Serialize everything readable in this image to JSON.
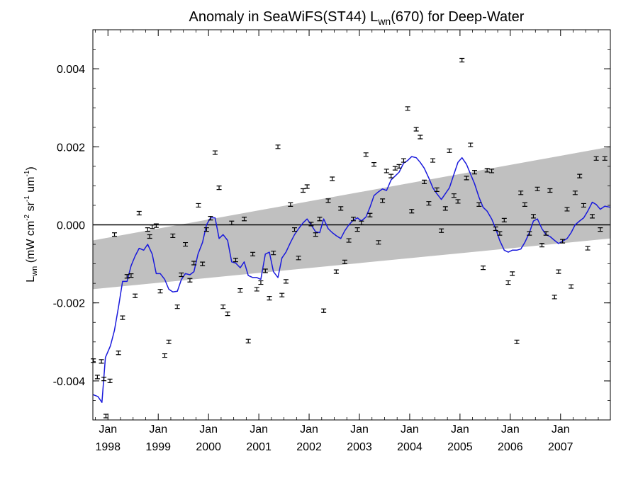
{
  "chart_data": {
    "type": "scatter",
    "title": {
      "prefix": "Anomaly in SeaWiFS(ST44) L",
      "subscript": "wn",
      "suffix": "(670) for Deep-Water"
    },
    "ylabel": {
      "prefix": "L",
      "sub": "wn",
      "mid1": " (mW cm",
      "sup1": "-2",
      "mid2": " sr",
      "sup2": "-1",
      "mid3": " um",
      "sup3": "-1",
      "end": ")"
    },
    "xlim": [
      1997.7,
      2007.99
    ],
    "ylim": [
      -0.005,
      0.005
    ],
    "yticks": [
      {
        "value": 0.004,
        "label": "0.004"
      },
      {
        "value": 0.002,
        "label": "0.002"
      },
      {
        "value": 0.0,
        "label": "0.000"
      },
      {
        "value": -0.002,
        "label": "-0.002"
      },
      {
        "value": -0.004,
        "label": "-0.004"
      }
    ],
    "xticks": [
      {
        "value": 1998.0,
        "line1": "Jan",
        "line2": "1998"
      },
      {
        "value": 1999.0,
        "line1": "Jan",
        "line2": "1999"
      },
      {
        "value": 2000.0,
        "line1": "Jan",
        "line2": "2000"
      },
      {
        "value": 2001.0,
        "line1": "Jan",
        "line2": "2001"
      },
      {
        "value": 2002.0,
        "line1": "Jan",
        "line2": "2002"
      },
      {
        "value": 2003.0,
        "line1": "Jan",
        "line2": "2003"
      },
      {
        "value": 2004.0,
        "line1": "Jan",
        "line2": "2004"
      },
      {
        "value": 2005.0,
        "line1": "Jan",
        "line2": "2005"
      },
      {
        "value": 2006.0,
        "line1": "Jan",
        "line2": "2006"
      },
      {
        "value": 2007.0,
        "line1": "Jan",
        "line2": "2007"
      }
    ],
    "zero_line": 0.0,
    "trend_band": {
      "color": "#c0c0c0",
      "upper": [
        [
          1997.7,
          -0.0004
        ],
        [
          2007.99,
          0.002
        ]
      ],
      "lower": [
        [
          1997.7,
          -0.00165
        ],
        [
          2007.99,
          -0.00035
        ]
      ]
    },
    "points_color": "#000000",
    "points": [
      [
        1997.71,
        -0.00348
      ],
      [
        1997.79,
        -0.0039
      ],
      [
        1997.87,
        -0.0035
      ],
      [
        1997.92,
        -0.00395
      ],
      [
        1997.96,
        -0.0049
      ],
      [
        1998.04,
        -0.004
      ],
      [
        1998.13,
        -0.00025
      ],
      [
        1998.21,
        -0.00328
      ],
      [
        1998.29,
        -0.00238
      ],
      [
        1998.38,
        -0.00132
      ],
      [
        1998.46,
        -0.0013
      ],
      [
        1998.54,
        -0.00182
      ],
      [
        1998.62,
        0.0003
      ],
      [
        1998.79,
        -0.00012
      ],
      [
        1998.83,
        -0.0003
      ],
      [
        1998.88,
        -5e-05
      ],
      [
        1998.96,
        -2e-05
      ],
      [
        1999.04,
        -0.0017
      ],
      [
        1999.13,
        -0.00335
      ],
      [
        1999.21,
        -0.003
      ],
      [
        1999.29,
        -0.00028
      ],
      [
        1999.38,
        -0.0021
      ],
      [
        1999.46,
        -0.00128
      ],
      [
        1999.54,
        -0.0005
      ],
      [
        1999.63,
        -0.00142
      ],
      [
        1999.71,
        -0.00098
      ],
      [
        1999.8,
        0.0005
      ],
      [
        1999.88,
        -0.001
      ],
      [
        1999.96,
        -0.00012
      ],
      [
        2000.04,
        0.00017
      ],
      [
        2000.13,
        0.00185
      ],
      [
        2000.21,
        0.00095
      ],
      [
        2000.29,
        -0.0021
      ],
      [
        2000.38,
        -0.00228
      ],
      [
        2000.46,
        5e-05
      ],
      [
        2000.54,
        -0.0009
      ],
      [
        2000.63,
        -0.00168
      ],
      [
        2000.71,
        0.00015
      ],
      [
        2000.79,
        -0.00298
      ],
      [
        2000.88,
        -0.00075
      ],
      [
        2000.96,
        -0.00165
      ],
      [
        2001.04,
        -0.00148
      ],
      [
        2001.13,
        -0.00118
      ],
      [
        2001.21,
        -0.00188
      ],
      [
        2001.29,
        -0.00072
      ],
      [
        2001.38,
        0.002
      ],
      [
        2001.46,
        -0.0018
      ],
      [
        2001.54,
        -0.00145
      ],
      [
        2001.63,
        0.00052
      ],
      [
        2001.71,
        -0.00012
      ],
      [
        2001.79,
        -0.00085
      ],
      [
        2001.88,
        0.00088
      ],
      [
        2001.96,
        0.00098
      ],
      [
        2002.04,
        2e-05
      ],
      [
        2002.13,
        -0.00025
      ],
      [
        2002.21,
        0.00015
      ],
      [
        2002.29,
        -0.0022
      ],
      [
        2002.38,
        0.00062
      ],
      [
        2002.46,
        0.00118
      ],
      [
        2002.54,
        -0.0012
      ],
      [
        2002.63,
        0.00042
      ],
      [
        2002.71,
        -0.00095
      ],
      [
        2002.79,
        -0.0004
      ],
      [
        2002.88,
        0.00015
      ],
      [
        2002.96,
        -0.00012
      ],
      [
        2003.04,
        5e-05
      ],
      [
        2003.13,
        0.0018
      ],
      [
        2003.21,
        0.00025
      ],
      [
        2003.29,
        0.00155
      ],
      [
        2003.38,
        -0.00045
      ],
      [
        2003.46,
        0.00062
      ],
      [
        2003.54,
        0.00138
      ],
      [
        2003.63,
        0.00125
      ],
      [
        2003.71,
        0.00145
      ],
      [
        2003.79,
        0.0015
      ],
      [
        2003.88,
        0.00165
      ],
      [
        2003.96,
        0.00298
      ],
      [
        2004.04,
        0.00035
      ],
      [
        2004.13,
        0.00245
      ],
      [
        2004.21,
        0.00225
      ],
      [
        2004.29,
        0.0011
      ],
      [
        2004.38,
        0.00055
      ],
      [
        2004.46,
        0.00165
      ],
      [
        2004.54,
        0.0009
      ],
      [
        2004.63,
        -0.00015
      ],
      [
        2004.71,
        0.00042
      ],
      [
        2004.79,
        0.0019
      ],
      [
        2004.88,
        0.00075
      ],
      [
        2004.96,
        0.0006
      ],
      [
        2005.04,
        0.00422
      ],
      [
        2005.13,
        0.0012
      ],
      [
        2005.21,
        0.00205
      ],
      [
        2005.29,
        0.00135
      ],
      [
        2005.38,
        0.00052
      ],
      [
        2005.46,
        -0.0011
      ],
      [
        2005.54,
        0.0014
      ],
      [
        2005.63,
        0.00138
      ],
      [
        2005.71,
        -0.0001
      ],
      [
        2005.79,
        -0.00022
      ],
      [
        2005.88,
        0.00012
      ],
      [
        2005.96,
        -0.00148
      ],
      [
        2006.04,
        -0.00125
      ],
      [
        2006.13,
        -0.003
      ],
      [
        2006.21,
        0.00082
      ],
      [
        2006.29,
        0.00052
      ],
      [
        2006.38,
        -0.00022
      ],
      [
        2006.46,
        0.00022
      ],
      [
        2006.54,
        0.00092
      ],
      [
        2006.63,
        -0.00052
      ],
      [
        2006.71,
        -0.00022
      ],
      [
        2006.79,
        0.00088
      ],
      [
        2006.88,
        -0.00185
      ],
      [
        2006.96,
        -0.0012
      ],
      [
        2007.04,
        -0.00042
      ],
      [
        2007.13,
        0.0004
      ],
      [
        2007.21,
        -0.00158
      ],
      [
        2007.29,
        0.00082
      ],
      [
        2007.38,
        0.00125
      ],
      [
        2007.46,
        0.0005
      ],
      [
        2007.54,
        -0.0006
      ],
      [
        2007.63,
        0.00022
      ],
      [
        2007.71,
        0.0017
      ],
      [
        2007.79,
        -0.00012
      ],
      [
        2007.88,
        0.0017
      ]
    ],
    "smooth_color": "#1a1adc",
    "smooth_line": [
      [
        1997.7,
        -0.00435
      ],
      [
        1997.8,
        -0.0044
      ],
      [
        1997.88,
        -0.00455
      ],
      [
        1997.95,
        -0.0034
      ],
      [
        1998.05,
        -0.0031
      ],
      [
        1998.13,
        -0.0027
      ],
      [
        1998.21,
        -0.0021
      ],
      [
        1998.29,
        -0.00145
      ],
      [
        1998.38,
        -0.00145
      ],
      [
        1998.46,
        -0.00105
      ],
      [
        1998.54,
        -0.0008
      ],
      [
        1998.62,
        -0.0006
      ],
      [
        1998.71,
        -0.00065
      ],
      [
        1998.79,
        -0.0005
      ],
      [
        1998.88,
        -0.00075
      ],
      [
        1998.96,
        -0.00125
      ],
      [
        1999.04,
        -0.00125
      ],
      [
        1999.13,
        -0.0014
      ],
      [
        1999.21,
        -0.00165
      ],
      [
        1999.29,
        -0.00172
      ],
      [
        1999.38,
        -0.0017
      ],
      [
        1999.46,
        -0.0014
      ],
      [
        1999.54,
        -0.00125
      ],
      [
        1999.63,
        -0.00128
      ],
      [
        1999.71,
        -0.0012
      ],
      [
        1999.79,
        -0.00075
      ],
      [
        1999.88,
        -0.00045
      ],
      [
        1999.96,
        0.0
      ],
      [
        2000.04,
        0.00018
      ],
      [
        2000.13,
        0.00018
      ],
      [
        2000.21,
        -0.00035
      ],
      [
        2000.29,
        -0.00025
      ],
      [
        2000.38,
        -0.0004
      ],
      [
        2000.46,
        -0.00095
      ],
      [
        2000.54,
        -0.00098
      ],
      [
        2000.63,
        -0.0011
      ],
      [
        2000.71,
        -0.00095
      ],
      [
        2000.79,
        -0.0013
      ],
      [
        2000.88,
        -0.00135
      ],
      [
        2000.96,
        -0.00135
      ],
      [
        2001.04,
        -0.0014
      ],
      [
        2001.13,
        -0.00075
      ],
      [
        2001.21,
        -0.0007
      ],
      [
        2001.29,
        -0.0012
      ],
      [
        2001.38,
        -0.00135
      ],
      [
        2001.46,
        -0.00085
      ],
      [
        2001.54,
        -0.0007
      ],
      [
        2001.63,
        -0.00045
      ],
      [
        2001.71,
        -0.00025
      ],
      [
        2001.79,
        -0.0001
      ],
      [
        2001.88,
        5e-05
      ],
      [
        2001.96,
        0.00015
      ],
      [
        2002.04,
        0.0
      ],
      [
        2002.13,
        -0.00018
      ],
      [
        2002.21,
        -0.0002
      ],
      [
        2002.29,
        0.00015
      ],
      [
        2002.38,
        -0.0001
      ],
      [
        2002.46,
        -0.0002
      ],
      [
        2002.54,
        -0.00028
      ],
      [
        2002.63,
        -0.00035
      ],
      [
        2002.71,
        -0.00015
      ],
      [
        2002.79,
        0.0
      ],
      [
        2002.88,
        0.00012
      ],
      [
        2002.96,
        0.00018
      ],
      [
        2003.04,
        0.0001
      ],
      [
        2003.13,
        0.0002
      ],
      [
        2003.21,
        0.00045
      ],
      [
        2003.29,
        0.00075
      ],
      [
        2003.38,
        0.00085
      ],
      [
        2003.46,
        0.00092
      ],
      [
        2003.54,
        0.00088
      ],
      [
        2003.63,
        0.00115
      ],
      [
        2003.71,
        0.00125
      ],
      [
        2003.79,
        0.00135
      ],
      [
        2003.88,
        0.00158
      ],
      [
        2003.96,
        0.00165
      ],
      [
        2004.04,
        0.00175
      ],
      [
        2004.13,
        0.00172
      ],
      [
        2004.21,
        0.0016
      ],
      [
        2004.29,
        0.00145
      ],
      [
        2004.38,
        0.0012
      ],
      [
        2004.46,
        0.00095
      ],
      [
        2004.54,
        0.0008
      ],
      [
        2004.63,
        0.00065
      ],
      [
        2004.71,
        0.0008
      ],
      [
        2004.79,
        0.00095
      ],
      [
        2004.88,
        0.0013
      ],
      [
        2004.96,
        0.0016
      ],
      [
        2005.04,
        0.00172
      ],
      [
        2005.13,
        0.00155
      ],
      [
        2005.21,
        0.0013
      ],
      [
        2005.29,
        0.00105
      ],
      [
        2005.38,
        0.0007
      ],
      [
        2005.46,
        0.00045
      ],
      [
        2005.54,
        0.00035
      ],
      [
        2005.63,
        0.00015
      ],
      [
        2005.71,
        -0.0001
      ],
      [
        2005.79,
        -0.0004
      ],
      [
        2005.88,
        -0.00065
      ],
      [
        2005.96,
        -0.0007
      ],
      [
        2006.04,
        -0.00065
      ],
      [
        2006.13,
        -0.00065
      ],
      [
        2006.21,
        -0.00062
      ],
      [
        2006.29,
        -0.00045
      ],
      [
        2006.38,
        -0.0002
      ],
      [
        2006.46,
        0.0001
      ],
      [
        2006.54,
        0.00015
      ],
      [
        2006.63,
        -0.0001
      ],
      [
        2006.71,
        -0.00025
      ],
      [
        2006.79,
        -0.0003
      ],
      [
        2006.88,
        -0.0004
      ],
      [
        2006.96,
        -0.00048
      ],
      [
        2007.04,
        -0.00042
      ],
      [
        2007.13,
        -0.00035
      ],
      [
        2007.21,
        -0.0002
      ],
      [
        2007.29,
        0.0
      ],
      [
        2007.38,
        0.0001
      ],
      [
        2007.46,
        0.00018
      ],
      [
        2007.54,
        0.00035
      ],
      [
        2007.63,
        0.00058
      ],
      [
        2007.71,
        0.00052
      ],
      [
        2007.79,
        0.0004
      ],
      [
        2007.88,
        0.00048
      ],
      [
        2007.99,
        0.00045
      ]
    ]
  }
}
